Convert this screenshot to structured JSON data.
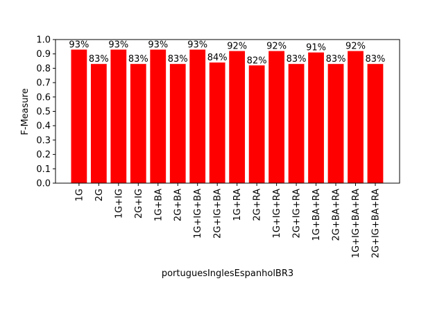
{
  "chart_data": {
    "type": "bar",
    "xlabel": "portuguesInglesEspanholBR3",
    "ylabel": "F-Measure",
    "categories": [
      "1G",
      "2G",
      "1G+IG",
      "2G+IG",
      "1G+BA",
      "2G+BA",
      "1G+IG+BA",
      "2G+IG+BA",
      "1G+RA",
      "2G+RA",
      "1G+IG+RA",
      "2G+IG+RA",
      "1G+BA+RA",
      "2G+BA+RA",
      "1G+IG+BA+RA",
      "2G+IG+BA+RA"
    ],
    "values": [
      0.93,
      0.83,
      0.93,
      0.83,
      0.93,
      0.83,
      0.93,
      0.84,
      0.92,
      0.82,
      0.92,
      0.83,
      0.91,
      0.83,
      0.92,
      0.83
    ],
    "value_labels": [
      "93%",
      "83%",
      "93%",
      "83%",
      "93%",
      "83%",
      "93%",
      "84%",
      "92%",
      "82%",
      "92%",
      "83%",
      "91%",
      "83%",
      "92%",
      "83%"
    ],
    "color": "#ff0000",
    "ylim": [
      0,
      1
    ],
    "yticks": [
      {
        "value": 0,
        "label": "0.0"
      },
      0.1,
      0.2,
      0.3,
      0.4,
      0.5,
      0.6,
      0.7,
      0.8,
      0.9,
      {
        "value": 1,
        "label": "1.0"
      }
    ]
  }
}
